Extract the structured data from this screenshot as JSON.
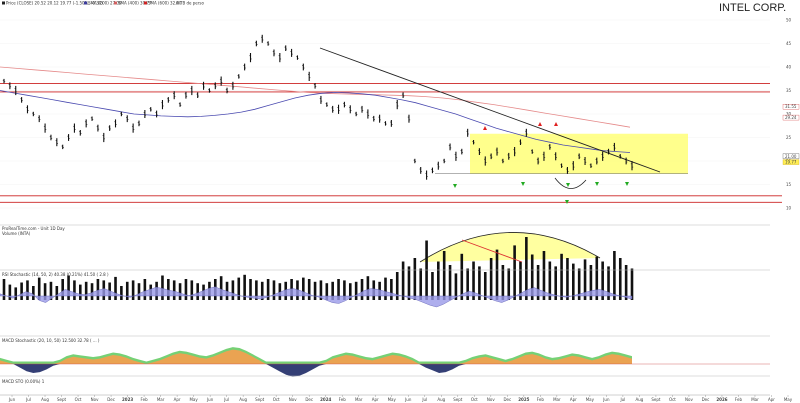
{
  "header": {
    "title": "INTEL CORP.",
    "legend": [
      {
        "label": "Price (CLOSE) 20.52 20.12 19.77 (-1.50%, -0.30)",
        "color": "#222222"
      },
      {
        "label": "SMA (200) 27.00",
        "color": "#3a3a9a"
      },
      {
        "label": "SMA (400) 30.77",
        "color": "#d06060"
      },
      {
        "label": "SMA (600) 32.80",
        "color": "#cc2222"
      },
      {
        "label": "TB de perso",
        "color": "#888888"
      }
    ]
  },
  "volume_panel": {
    "label_1": "ProRealTime.com - Unit 1D Day",
    "label_2": "Volume (INTA)"
  },
  "rsi_panel": {
    "label": "RSI Stochastic (14, 50, 2) 40.38 (0.21%) 41.50 ( 2.8 )"
  },
  "macd_panel": {
    "label": "MACD Stochastic (20, 10, 50) 12.500 32.78 ( ... )"
  },
  "bottom_panel": {
    "label": "MACD STO (0.00%) 1"
  },
  "chart_data": {
    "type": "ohlc",
    "title": "INTEL CORP.",
    "x_ticks": [
      "Jun",
      "Jul",
      "Aug",
      "Sept",
      "Oct",
      "Nov",
      "Dec",
      "2023",
      "Feb",
      "Mar",
      "Apr",
      "May",
      "Jun",
      "Jul",
      "Aug",
      "Sept",
      "Oct",
      "Nov",
      "Dec",
      "2024",
      "Feb",
      "Mar",
      "Apr",
      "May",
      "Jun",
      "Jul",
      "Aug",
      "Sept",
      "Oct",
      "Nov",
      "Dec",
      "2025",
      "Feb",
      "Mar",
      "Apr",
      "May",
      "Jun",
      "Jul",
      "Aug",
      "Sept",
      "Oct",
      "Nov",
      "Dec",
      "2026",
      "Feb",
      "Mar",
      "Apr",
      "May"
    ],
    "y_ticks": [
      50,
      45,
      40,
      35,
      30,
      25,
      20,
      15,
      10
    ],
    "price_labels": [
      {
        "value": 31.55,
        "color": "#cc2222"
      },
      {
        "value": 29.24,
        "color": "#cc2222"
      },
      {
        "value": 21.0,
        "color": "#333333"
      },
      {
        "value": 19.77,
        "color": "#c8a000"
      }
    ],
    "resistance_lines": [
      36.5,
      34.7
    ],
    "support_lines": [
      12.6,
      11.2
    ],
    "range_box": {
      "top": 25.8,
      "bottom": 17.3
    },
    "annotations": {
      "up_arrows": 6,
      "down_arrows": 3
    },
    "price_bars": [
      37,
      36,
      35,
      33,
      31,
      30,
      29,
      27,
      25,
      24,
      23,
      25,
      27,
      26,
      28,
      29,
      27,
      25,
      27,
      28,
      30,
      29,
      27,
      28,
      30,
      31,
      30,
      32,
      33,
      34,
      32,
      34,
      35,
      34,
      36,
      35,
      36,
      37,
      35,
      36,
      38,
      40,
      42,
      45,
      46,
      45,
      43,
      42,
      44,
      43,
      42,
      40,
      38,
      36,
      33,
      32,
      31,
      31,
      32,
      31,
      30,
      31,
      30,
      29,
      29,
      28,
      28,
      32,
      34,
      29,
      20,
      18,
      17,
      18,
      19,
      20,
      23,
      21,
      22,
      26,
      24,
      22,
      20,
      21,
      22,
      20,
      21,
      22,
      24,
      26,
      22,
      20,
      21,
      23,
      21,
      19,
      18,
      19,
      21,
      20,
      19,
      20,
      21,
      22,
      23,
      21,
      20,
      19
    ],
    "sma200": [
      35,
      34.5,
      34,
      33.5,
      33,
      32.5,
      32,
      31.5,
      31,
      30.5,
      30,
      29.8,
      29.6,
      29.5,
      29.4,
      29.5,
      29.7,
      30,
      30.4,
      31,
      31.8,
      32.6,
      33.4,
      34,
      34.4,
      34.6,
      34.5,
      34.3,
      34,
      33.5,
      33,
      32.4,
      31.6,
      30.8,
      30,
      29,
      28,
      27,
      26.2,
      25.4,
      24.6,
      24,
      23.4,
      23,
      22.6,
      22.2,
      22,
      21.8
    ],
    "sma400": [
      40,
      39.7,
      39.4,
      39.1,
      38.8,
      38.5,
      38.2,
      37.9,
      37.6,
      37.3,
      37,
      36.7,
      36.4,
      36.1,
      35.8,
      35.5,
      35.2,
      34.9,
      34.6,
      34.4,
      34.3,
      34.2,
      34.1,
      34,
      33.9,
      33.7,
      33.4,
      33,
      32.5,
      32,
      31.4,
      30.8,
      30.2,
      29.6,
      29,
      28.4,
      27.8,
      27.2
    ],
    "trendline": {
      "x0": 320,
      "y0": 48,
      "x1": 660,
      "y1": 172
    },
    "volume_bars": [
      30,
      22,
      18,
      25,
      28,
      20,
      32,
      24,
      26,
      20,
      30,
      35,
      28,
      22,
      26,
      24,
      30,
      28,
      25,
      33,
      20,
      26,
      28,
      24,
      30,
      22,
      26,
      35,
      30,
      28,
      24,
      30,
      28,
      24,
      22,
      26,
      30,
      34,
      26,
      28,
      32,
      36,
      30,
      28,
      26,
      30,
      28,
      24,
      26,
      30,
      28,
      32,
      30,
      26,
      28,
      24,
      26,
      30,
      28,
      24,
      26,
      30,
      34,
      28,
      26,
      32,
      30,
      40,
      55,
      48,
      60,
      45,
      85,
      40,
      55,
      70,
      50,
      38,
      66,
      45,
      55,
      48,
      40,
      60,
      72,
      50,
      45,
      78,
      55,
      90,
      65,
      50,
      70,
      55,
      48,
      66,
      60,
      52,
      45,
      58,
      50,
      62,
      55,
      48,
      70,
      60,
      50,
      45
    ],
    "rsi_values": [
      0.5,
      0.45,
      0.4,
      0.48,
      0.55,
      0.5,
      0.35,
      0.3,
      0.4,
      0.5,
      0.6,
      0.55,
      0.5,
      0.48,
      0.52,
      0.58,
      0.62,
      0.56,
      0.5,
      0.45,
      0.42,
      0.48,
      0.55,
      0.6,
      0.65,
      0.62,
      0.58,
      0.55,
      0.5,
      0.46,
      0.5,
      0.56,
      0.62,
      0.66,
      0.6,
      0.55,
      0.5,
      0.45,
      0.42,
      0.4,
      0.38,
      0.42,
      0.48,
      0.54,
      0.6,
      0.62,
      0.58,
      0.52,
      0.46,
      0.42,
      0.36,
      0.3,
      0.28,
      0.34,
      0.42,
      0.5,
      0.58,
      0.62,
      0.6,
      0.56,
      0.52,
      0.48,
      0.44,
      0.4,
      0.36,
      0.3,
      0.24,
      0.2,
      0.26,
      0.34,
      0.42,
      0.5,
      0.56,
      0.52,
      0.46,
      0.4,
      0.34,
      0.3,
      0.36,
      0.44,
      0.52,
      0.6,
      0.64,
      0.58,
      0.52,
      0.48,
      0.44,
      0.42,
      0.46,
      0.5,
      0.54,
      0.58,
      0.6,
      0.56,
      0.5,
      0.46,
      0.42,
      0.38
    ],
    "macd_values": [
      0.2,
      0.1,
      0.0,
      -0.2,
      -0.4,
      -0.5,
      -0.45,
      -0.3,
      -0.1,
      0.1,
      0.3,
      0.4,
      0.35,
      0.3,
      0.25,
      0.3,
      0.4,
      0.5,
      0.45,
      0.35,
      0.2,
      0.1,
      0.0,
      0.1,
      0.2,
      0.35,
      0.5,
      0.6,
      0.55,
      0.45,
      0.35,
      0.3,
      0.4,
      0.55,
      0.7,
      0.8,
      0.75,
      0.6,
      0.4,
      0.2,
      0.0,
      -0.2,
      -0.4,
      -0.6,
      -0.7,
      -0.65,
      -0.5,
      -0.3,
      -0.1,
      0.1,
      0.3,
      0.4,
      0.5,
      0.45,
      0.35,
      0.25,
      0.2,
      0.3,
      0.4,
      0.5,
      0.45,
      0.35,
      0.2,
      0.0,
      -0.2,
      -0.35,
      -0.5,
      -0.45,
      -0.3,
      -0.1,
      0.1,
      0.25,
      0.35,
      0.4,
      0.3,
      0.2,
      0.1,
      0.2,
      0.35,
      0.5,
      0.55,
      0.45,
      0.3,
      0.2,
      0.25,
      0.35,
      0.45,
      0.4,
      0.3,
      0.2,
      0.3,
      0.45,
      0.55,
      0.5,
      0.4,
      0.3
    ]
  }
}
